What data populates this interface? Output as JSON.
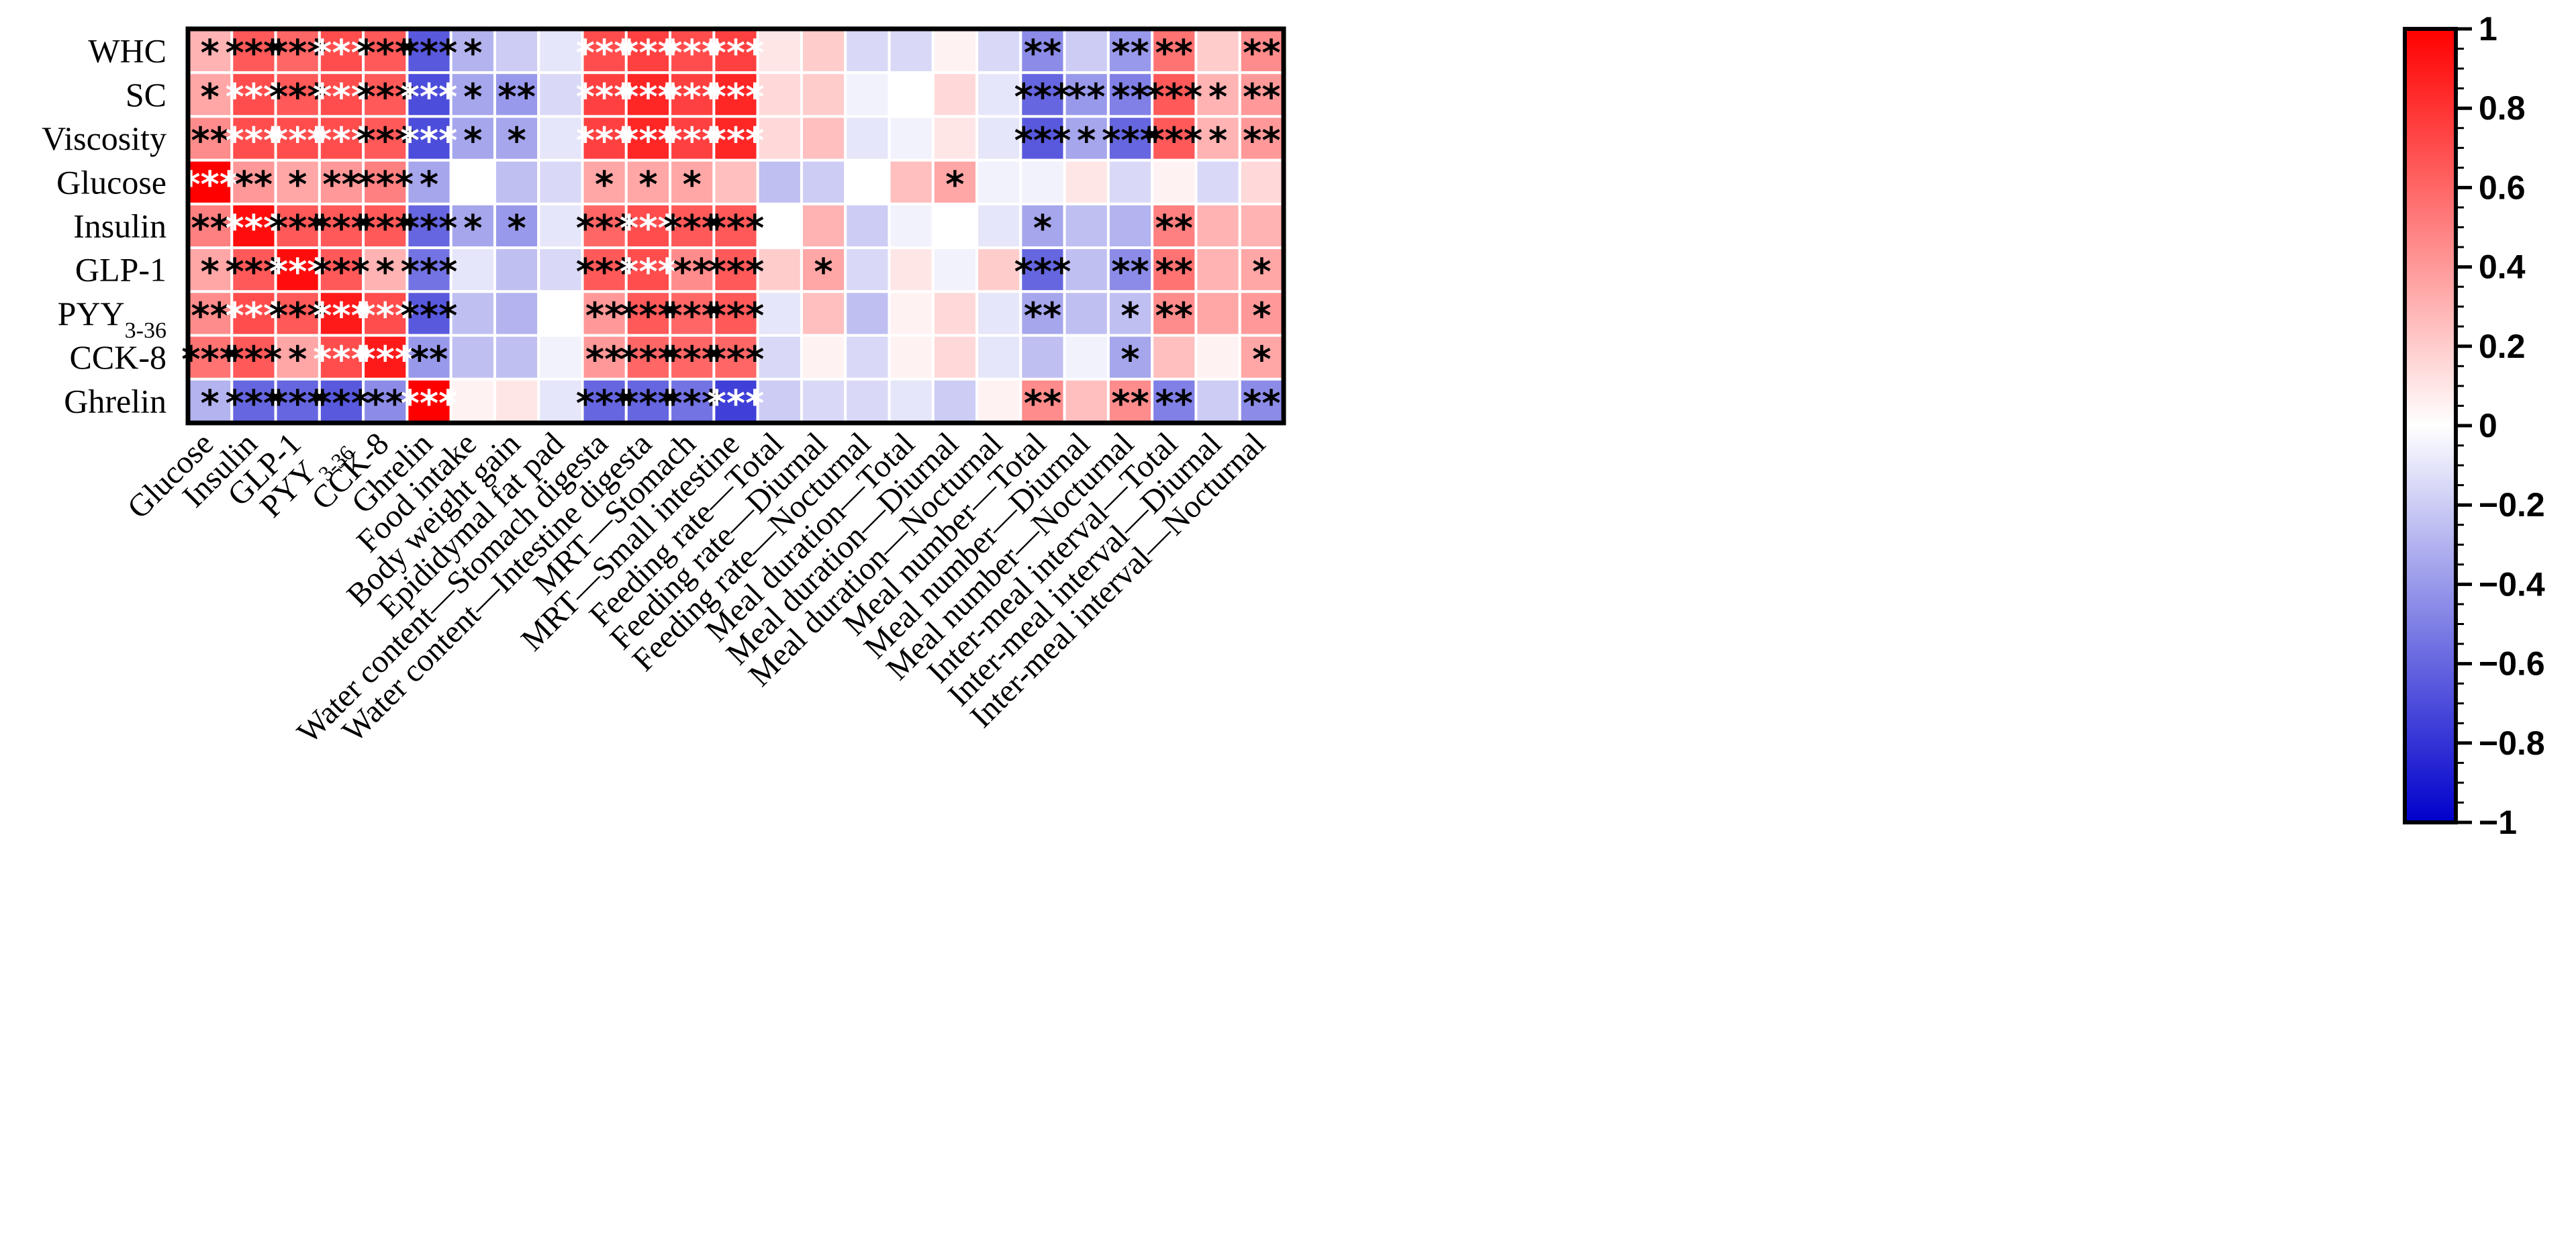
{
  "chart_data": {
    "type": "heatmap",
    "title": "",
    "rows": [
      "WHC",
      "SC",
      "Viscosity",
      "Glucose",
      "Insulin",
      "GLP-1",
      "PYY3-36",
      "CCK-8",
      "Ghrelin"
    ],
    "row_labels": [
      {
        "main": "WHC"
      },
      {
        "main": "SC"
      },
      {
        "main": "Viscosity"
      },
      {
        "main": "Glucose"
      },
      {
        "main": "Insulin"
      },
      {
        "main": "GLP-1"
      },
      {
        "main": "PYY",
        "sub": "3-36"
      },
      {
        "main": "CCK-8"
      },
      {
        "main": "Ghrelin"
      }
    ],
    "columns": [
      "Glucose",
      "Insulin",
      "GLP-1",
      "PYY3-36",
      "CCK-8",
      "Ghrelin",
      "Food intake",
      "Body weight gain",
      "Epididymal fat pad",
      "Water content—Stomach digesta",
      "Water content—Intestine digesta",
      "MRT—Stomach",
      "MRT—Small intestine",
      "Feeding rate—Total",
      "Feeding rate—Diurnal",
      "Feeding rate—Nocturnal",
      "Meal duration—Total",
      "Meal duration—Diurnal",
      "Meal duration—Nocturnal",
      "Meal number—Total",
      "Meal number—Diurnal",
      "Meal number—Nocturnal",
      "Inter-meal interval—Total",
      "Inter-meal interval—Diurnal",
      "Inter-meal interval—Nocturnal"
    ],
    "column_labels": [
      {
        "main": "Glucose"
      },
      {
        "main": "Insulin"
      },
      {
        "main": "GLP-1"
      },
      {
        "main": "PYY",
        "sub": "3-36"
      },
      {
        "main": "CCK-8"
      },
      {
        "main": "Ghrelin"
      },
      {
        "main": "Food intake"
      },
      {
        "main": "Body weight gain"
      },
      {
        "main": "Epididymal fat pad"
      },
      {
        "main": "Water content—Stomach digesta"
      },
      {
        "main": "Water content—Intestine digesta"
      },
      {
        "main": "MRT—Stomach"
      },
      {
        "main": "MRT—Small intestine"
      },
      {
        "main": "Feeding rate—Total"
      },
      {
        "main": "Feeding rate—Diurnal"
      },
      {
        "main": "Feeding rate—Nocturnal"
      },
      {
        "main": "Meal duration—Total"
      },
      {
        "main": "Meal duration—Diurnal"
      },
      {
        "main": "Meal duration—Nocturnal"
      },
      {
        "main": "Meal number—Total"
      },
      {
        "main": "Meal number—Diurnal"
      },
      {
        "main": "Meal number—Nocturnal"
      },
      {
        "main": "Inter-meal interval—Total"
      },
      {
        "main": "Inter-meal interval—Diurnal"
      },
      {
        "main": "Inter-meal interval—Nocturnal"
      }
    ],
    "values": [
      [
        0.3,
        0.65,
        0.6,
        0.7,
        0.65,
        -0.65,
        -0.3,
        -0.2,
        -0.1,
        0.7,
        0.75,
        0.7,
        0.75,
        0.1,
        0.2,
        -0.15,
        -0.15,
        0.05,
        -0.15,
        -0.45,
        -0.2,
        -0.4,
        0.55,
        0.2,
        0.45
      ],
      [
        0.35,
        0.7,
        0.65,
        0.7,
        0.65,
        -0.7,
        -0.35,
        -0.4,
        -0.15,
        0.75,
        0.85,
        0.75,
        0.85,
        0.15,
        0.2,
        -0.05,
        0.0,
        0.15,
        -0.1,
        -0.6,
        -0.4,
        -0.5,
        0.65,
        0.3,
        0.4
      ],
      [
        0.45,
        0.7,
        0.7,
        0.7,
        0.65,
        -0.7,
        -0.35,
        -0.35,
        -0.1,
        0.75,
        0.85,
        0.75,
        0.85,
        0.15,
        0.25,
        -0.1,
        -0.05,
        0.1,
        -0.1,
        -0.65,
        -0.35,
        -0.6,
        0.65,
        0.3,
        0.4
      ],
      [
        1.0,
        0.4,
        0.35,
        0.4,
        0.5,
        -0.35,
        0.0,
        -0.25,
        -0.15,
        0.35,
        0.35,
        0.35,
        0.25,
        -0.25,
        -0.2,
        0.0,
        0.25,
        0.35,
        -0.05,
        -0.05,
        0.1,
        -0.15,
        0.05,
        -0.15,
        0.15
      ],
      [
        0.5,
        0.95,
        0.65,
        0.65,
        0.65,
        -0.6,
        -0.35,
        -0.4,
        -0.1,
        0.6,
        0.7,
        0.65,
        0.65,
        0.0,
        0.3,
        -0.2,
        -0.05,
        0.0,
        -0.1,
        -0.35,
        -0.25,
        -0.3,
        0.5,
        0.3,
        0.3
      ],
      [
        0.35,
        0.65,
        0.95,
        0.65,
        0.3,
        -0.55,
        -0.1,
        -0.25,
        -0.15,
        0.65,
        0.7,
        0.45,
        0.65,
        0.2,
        0.35,
        -0.15,
        0.1,
        -0.05,
        0.2,
        -0.6,
        -0.25,
        -0.45,
        0.55,
        0.3,
        0.35
      ],
      [
        0.45,
        0.7,
        0.65,
        0.9,
        0.7,
        -0.65,
        -0.25,
        -0.3,
        0.0,
        0.4,
        0.65,
        0.6,
        0.65,
        -0.1,
        0.25,
        -0.25,
        0.05,
        0.15,
        -0.1,
        -0.35,
        -0.25,
        -0.25,
        0.45,
        0.35,
        0.4
      ],
      [
        0.55,
        0.65,
        0.35,
        0.7,
        0.9,
        -0.4,
        -0.25,
        -0.25,
        -0.05,
        0.4,
        0.6,
        0.6,
        0.6,
        -0.15,
        0.05,
        -0.15,
        0.05,
        0.15,
        -0.1,
        -0.25,
        -0.05,
        -0.35,
        0.25,
        0.05,
        0.35
      ],
      [
        -0.3,
        -0.6,
        -0.6,
        -0.65,
        -0.45,
        1.0,
        0.05,
        0.1,
        -0.1,
        -0.6,
        -0.6,
        -0.55,
        -0.75,
        -0.2,
        -0.15,
        -0.15,
        -0.1,
        -0.2,
        0.05,
        0.45,
        0.25,
        0.45,
        -0.5,
        -0.2,
        -0.45
      ]
    ],
    "significance": [
      [
        "*",
        "***",
        "***",
        "***",
        "***",
        "***",
        "*",
        "",
        "",
        "***",
        "***",
        "***",
        "***",
        "",
        "",
        "",
        "",
        "",
        "",
        "**",
        "",
        "**",
        "**",
        "",
        "**"
      ],
      [
        "*",
        "***",
        "***",
        "***",
        "***",
        "***",
        "*",
        "**",
        "",
        "***",
        "***",
        "***",
        "***",
        "",
        "",
        "",
        "",
        "",
        "",
        "***",
        "**",
        "**",
        "***",
        "*",
        "**"
      ],
      [
        "**",
        "***",
        "***",
        "***",
        "***",
        "***",
        "*",
        "*",
        "",
        "***",
        "***",
        "***",
        "***",
        "",
        "",
        "",
        "",
        "",
        "",
        "***",
        "*",
        "***",
        "***",
        "*",
        "**"
      ],
      [
        "***",
        "**",
        "*",
        "**",
        "***",
        "*",
        "",
        "",
        "",
        "*",
        "*",
        "*",
        "",
        "",
        "",
        "",
        "",
        "*",
        "",
        "",
        "",
        "",
        "",
        "",
        ""
      ],
      [
        "**",
        "***",
        "***",
        "***",
        "***",
        "***",
        "*",
        "*",
        "",
        "***",
        "***",
        "***",
        "***",
        "",
        "",
        "",
        "",
        "",
        "",
        "*",
        "",
        "",
        "**",
        "",
        ""
      ],
      [
        "*",
        "***",
        "***",
        "***",
        "*",
        "***",
        "",
        "",
        "",
        "***",
        "***",
        "**",
        "***",
        "",
        "*",
        "",
        "",
        "",
        "",
        "***",
        "",
        "**",
        "**",
        "",
        "*"
      ],
      [
        "**",
        "***",
        "***",
        "***",
        "***",
        "***",
        "",
        "",
        "",
        "**",
        "***",
        "***",
        "***",
        "",
        "",
        "",
        "",
        "",
        "",
        "**",
        "",
        "*",
        "**",
        "",
        "*"
      ],
      [
        "***",
        "***",
        "*",
        "***",
        "***",
        "**",
        "",
        "",
        "",
        "**",
        "***",
        "***",
        "***",
        "",
        "",
        "",
        "",
        "",
        "",
        "",
        "",
        "*",
        "",
        "",
        "*"
      ],
      [
        "*",
        "***",
        "***",
        "***",
        "**",
        "***",
        "",
        "",
        "",
        "***",
        "***",
        "***",
        "***",
        "",
        "",
        "",
        "",
        "",
        "",
        "**",
        "",
        "**",
        "**",
        "",
        "**"
      ]
    ],
    "star_white_threshold": 0.68,
    "colorbar": {
      "range": [
        -1,
        1
      ],
      "ticks": [
        1,
        0.8,
        0.6,
        0.4,
        0.2,
        0,
        -0.2,
        -0.4,
        -0.6,
        -0.8,
        -1
      ],
      "tick_labels": [
        "1",
        "0.8",
        "0.6",
        "0.4",
        "0.2",
        "0",
        "−0.2",
        "−0.4",
        "−0.6",
        "−0.8",
        "−1"
      ]
    },
    "colors": {
      "negative": "#0000cc",
      "mid": "#ffffff",
      "positive": "#ff0000",
      "border": "#000000"
    }
  }
}
